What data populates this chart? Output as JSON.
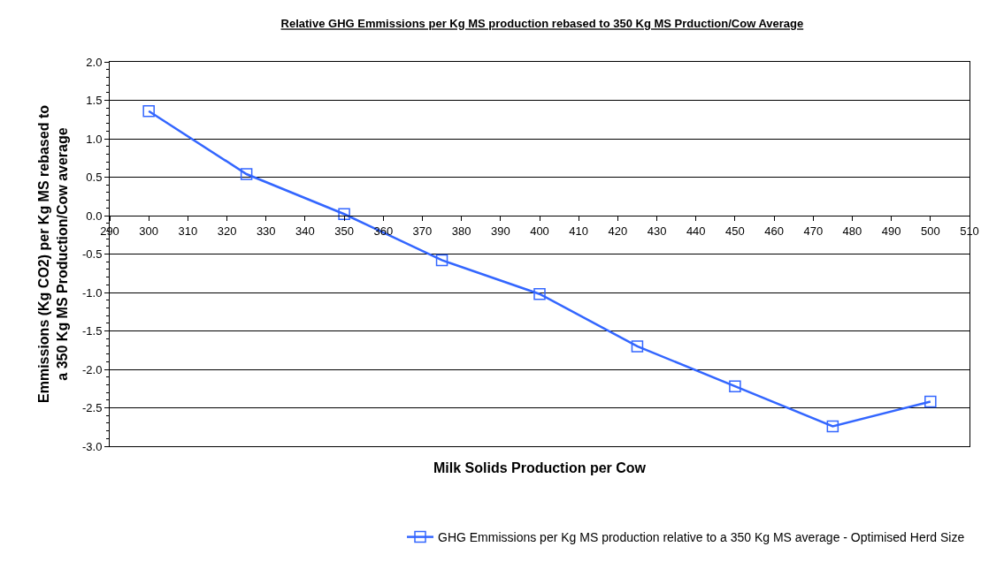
{
  "chart_data": {
    "type": "line",
    "title": "Relative GHG Emmissions per Kg MS production rebased to 350 Kg MS Prduction/Cow Average",
    "xlabel": "Milk Solids Production per Cow",
    "ylabel": "Emmissions (Kg CO2) per Kg MS rebased to\na 350 Kg MS Production/Cow average",
    "x": [
      300,
      325,
      350,
      375,
      400,
      425,
      450,
      475,
      500
    ],
    "series": [
      {
        "name": "GHG Emmissions per Kg MS production relative to a 350 Kg MS average - Optimised Herd Size",
        "color": "#3366ff",
        "values": [
          1.36,
          0.54,
          0.02,
          -0.58,
          -1.02,
          -1.7,
          -2.22,
          -2.74,
          -2.42
        ]
      }
    ],
    "xlim": [
      290,
      510
    ],
    "xticks": [
      290,
      300,
      310,
      320,
      330,
      340,
      350,
      360,
      370,
      380,
      390,
      400,
      410,
      420,
      430,
      440,
      450,
      460,
      470,
      480,
      490,
      500,
      510
    ],
    "ylim": [
      -3.0,
      2.0
    ],
    "yticks": [
      {
        "value": -3,
        "label": "-3.0"
      },
      {
        "value": -2.5,
        "label": "-2.5"
      },
      {
        "value": -2,
        "label": "-2.0"
      },
      {
        "value": -1.5,
        "label": "-1.5"
      },
      {
        "value": -1,
        "label": "-1.0"
      },
      {
        "value": -0.5,
        "label": "-0.5"
      },
      {
        "value": 0,
        "label": "0.0"
      },
      {
        "value": 0.5,
        "label": "0.5"
      },
      {
        "value": 1,
        "label": "1.0"
      },
      {
        "value": 1.5,
        "label": "1.5"
      },
      {
        "value": 2,
        "label": "2.0"
      }
    ],
    "grid": "y",
    "legend": "bottom",
    "marker": "square",
    "line_style": "solid"
  }
}
